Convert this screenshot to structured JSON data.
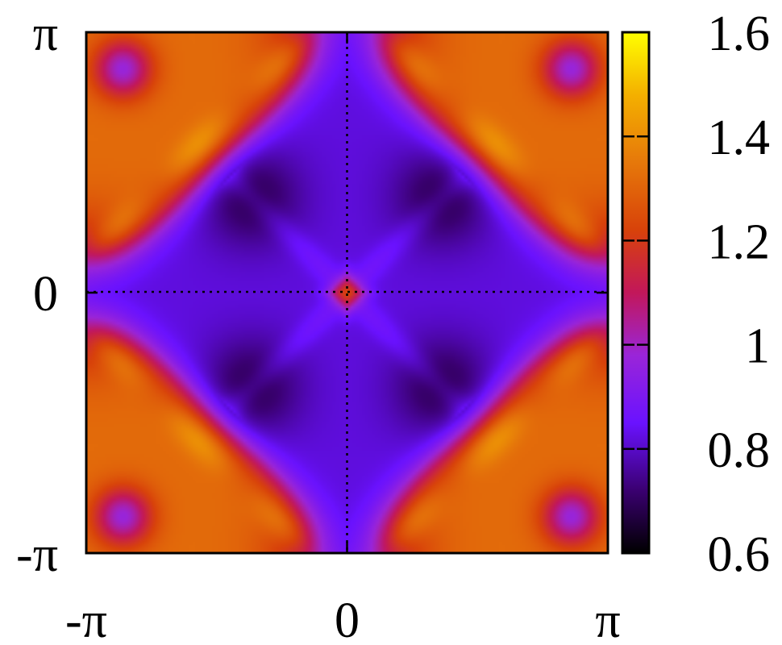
{
  "chart_data": {
    "type": "heatmap",
    "title": "",
    "xlabel": "",
    "ylabel": "",
    "x_range": [
      -3.14159,
      3.14159
    ],
    "y_range": [
      -3.14159,
      3.14159
    ],
    "x_ticks": [
      {
        "value": -3.14159,
        "label": "-π"
      },
      {
        "value": 0,
        "label": "0"
      },
      {
        "value": 3.14159,
        "label": "π"
      }
    ],
    "y_ticks": [
      {
        "value": -3.14159,
        "label": "-π"
      },
      {
        "value": 0,
        "label": "0"
      },
      {
        "value": 3.14159,
        "label": "π"
      }
    ],
    "colorbar": {
      "range": [
        0.6,
        1.6
      ],
      "ticks": [
        {
          "value": 0.6,
          "label": "0.6"
        },
        {
          "value": 0.8,
          "label": "0.8"
        },
        {
          "value": 1.0,
          "label": "1"
        },
        {
          "value": 1.2,
          "label": "1.2"
        },
        {
          "value": 1.4,
          "label": "1.4"
        },
        {
          "value": 1.6,
          "label": "1.6"
        }
      ],
      "colormap": [
        "#000000",
        "#3a0070",
        "#6a12ff",
        "#9a25d8",
        "#c2175a",
        "#d8420a",
        "#e6780a",
        "#f4b000",
        "#ffff00"
      ]
    },
    "zero_lines": {
      "x": 0,
      "y": 0,
      "style": "dotted"
    },
    "features": [
      {
        "description": "orange maximum at origin",
        "x": 0,
        "y": 0,
        "value": 1.15
      },
      {
        "description": "dark minima",
        "points": [
          [
            -1.2,
            1.2
          ],
          [
            1.2,
            1.2
          ],
          [
            -1.2,
            -1.2
          ],
          [
            1.2,
            -1.2
          ]
        ],
        "value": 0.68
      },
      {
        "description": "orange/yellow corner ridges",
        "value": 1.35
      }
    ]
  }
}
